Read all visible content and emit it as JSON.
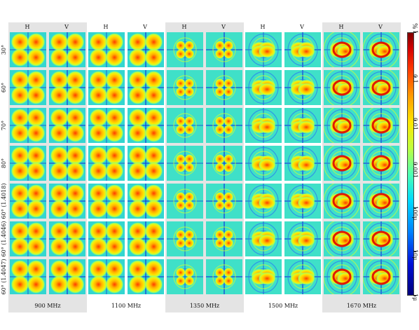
{
  "frequencies": [
    "900 MHz",
    "1100 MHz",
    "1350 MHz",
    "1500 MHz",
    "1670 MHz"
  ],
  "polarizations": [
    "H",
    "V"
  ],
  "rows": [
    "30°",
    "60°",
    "70°",
    "80°",
    "60° (1.4018)",
    "60° (1.4046)",
    "60° (1.4047)"
  ],
  "colorbar": {
    "unit": "%",
    "labels": [
      "1",
      "0.1",
      "0.01",
      "0.001",
      "100μ",
      "10μ",
      "1μ"
    ],
    "colors": [
      "#7f0000",
      "#d40000",
      "#ff3a00",
      "#ff9a00",
      "#ffe600",
      "#bfff3f",
      "#4dffb4",
      "#00d9ff",
      "#0080ff",
      "#0010d8",
      "#00007a"
    ]
  }
}
